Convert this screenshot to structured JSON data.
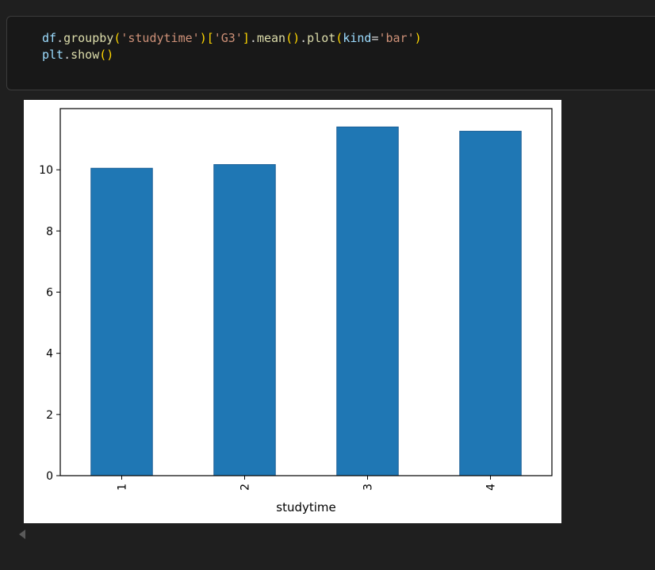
{
  "cell": {
    "code_lines": [
      [
        {
          "t": "df",
          "c": "var"
        },
        {
          "t": ".",
          "c": "plain"
        },
        {
          "t": "groupby",
          "c": "fn"
        },
        {
          "t": "(",
          "c": "p1"
        },
        {
          "t": "'studytime'",
          "c": "str"
        },
        {
          "t": ")",
          "c": "p1"
        },
        {
          "t": "[",
          "c": "p1"
        },
        {
          "t": "'G3'",
          "c": "str"
        },
        {
          "t": "]",
          "c": "p1"
        },
        {
          "t": ".",
          "c": "plain"
        },
        {
          "t": "mean",
          "c": "fn"
        },
        {
          "t": "()",
          "c": "p1"
        },
        {
          "t": ".",
          "c": "plain"
        },
        {
          "t": "plot",
          "c": "fn"
        },
        {
          "t": "(",
          "c": "p1"
        },
        {
          "t": "kind",
          "c": "kw"
        },
        {
          "t": "=",
          "c": "plain"
        },
        {
          "t": "'bar'",
          "c": "str"
        },
        {
          "t": ")",
          "c": "p1"
        }
      ],
      [
        {
          "t": "plt",
          "c": "var"
        },
        {
          "t": ".",
          "c": "plain"
        },
        {
          "t": "show",
          "c": "fn"
        },
        {
          "t": "()",
          "c": "p1"
        }
      ]
    ]
  },
  "chart_data": {
    "type": "bar",
    "categories": [
      "1",
      "2",
      "3",
      "4"
    ],
    "values": [
      10.05,
      10.17,
      11.4,
      11.26
    ],
    "xlabel": "studytime",
    "ylabel": "",
    "ylim": [
      0,
      12
    ],
    "yticks": [
      0,
      2,
      4,
      6,
      8,
      10
    ],
    "xtick_rotation": 90,
    "grid": false,
    "bar_color": "#1f77b4"
  }
}
